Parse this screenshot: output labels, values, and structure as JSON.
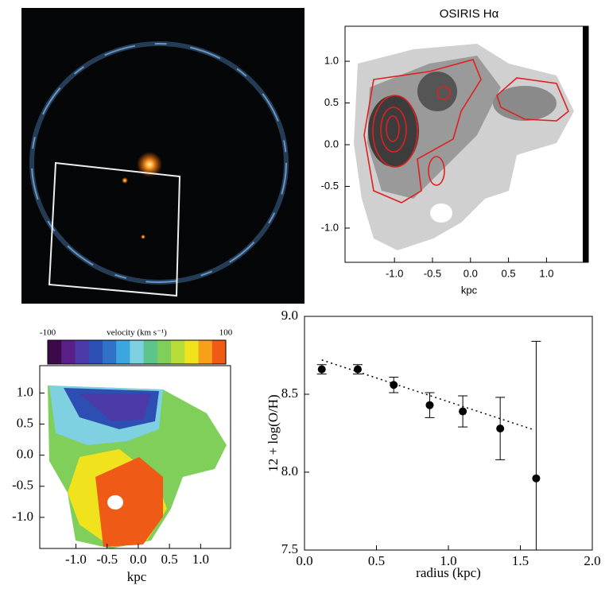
{
  "chart_data": [
    {
      "type": "map",
      "title": "OSIRIS Hα",
      "xlabel": "kpc",
      "xlim": [
        -1.65,
        1.55
      ],
      "ylim": [
        -1.41,
        1.42
      ],
      "xticks": [
        {
          "value": -1.0,
          "label": "-1.0"
        },
        {
          "value": -0.5,
          "label": "-0.5"
        },
        {
          "value": 0.0,
          "label": "0.0"
        },
        0.5,
        {
          "value": 1.0,
          "label": "1.0"
        }
      ],
      "yticks": [
        {
          "value": -1.0,
          "label": "-1.0"
        },
        {
          "value": -0.5,
          "label": "-0.5"
        },
        {
          "value": 0.0,
          "label": "0.0"
        },
        0.5,
        {
          "value": 1.0,
          "label": "1.0"
        }
      ]
    },
    {
      "type": "velocity-map",
      "xlabel": "kpc",
      "colorbar_label": "velocity (km s⁻¹)",
      "clim": [
        -100,
        100
      ],
      "cticks": [
        -100,
        100
      ],
      "colors": [
        "#3a0a4a",
        "#5a1f86",
        "#4b3aa8",
        "#2d4fb4",
        "#2f72c8",
        "#3ca7de",
        "#7fd0e0",
        "#5ec48c",
        "#7fcf5a",
        "#b6dc3a",
        "#f1e21e",
        "#f7a01a",
        "#ef5a17"
      ],
      "xlim": [
        -1.58,
        1.48
      ],
      "ylim": [
        -1.5,
        1.44
      ],
      "xticks": [
        {
          "value": -1.0,
          "label": "-1.0"
        },
        {
          "value": -0.5,
          "label": "-0.5"
        },
        {
          "value": 0.0,
          "label": "0.0"
        },
        0.5,
        {
          "value": 1.0,
          "label": "1.0"
        }
      ],
      "yticks": [
        {
          "value": -1.0,
          "label": "-1.0"
        },
        {
          "value": -0.5,
          "label": "-0.5"
        },
        {
          "value": 0.0,
          "label": "0.0"
        },
        0.5,
        {
          "value": 1.0,
          "label": "1.0"
        }
      ]
    },
    {
      "type": "errorbar",
      "xlabel": "radius (kpc)",
      "ylabel": "12 + log(O/H)",
      "xlim": [
        0,
        2
      ],
      "ylim": [
        7.5,
        9.0
      ],
      "xticks": [
        {
          "value": 0,
          "label": "0.0"
        },
        0.5,
        {
          "value": 1,
          "label": "1.0"
        },
        1.5,
        {
          "value": 2,
          "label": "2.0"
        }
      ],
      "yticks": [
        7.5,
        {
          "value": 8,
          "label": "8.0"
        },
        8.5,
        {
          "value": 9,
          "label": "9.0"
        }
      ],
      "x": [
        0.12,
        0.37,
        0.62,
        0.87,
        1.1,
        1.36,
        1.61
      ],
      "values": [
        8.66,
        8.66,
        8.56,
        8.43,
        8.39,
        8.28,
        7.96
      ],
      "errors": [
        0.03,
        0.03,
        0.05,
        0.08,
        0.1,
        0.2,
        0.88
      ],
      "fit": {
        "x": [
          0.12,
          1.6
        ],
        "y": [
          8.72,
          8.27
        ]
      }
    }
  ]
}
